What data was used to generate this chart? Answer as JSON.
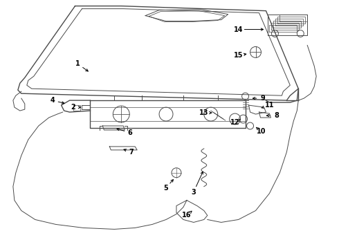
{
  "background_color": "#ffffff",
  "line_color": "#4a4a4a",
  "label_color": "#000000",
  "figsize": [
    4.9,
    3.6
  ],
  "dpi": 100
}
